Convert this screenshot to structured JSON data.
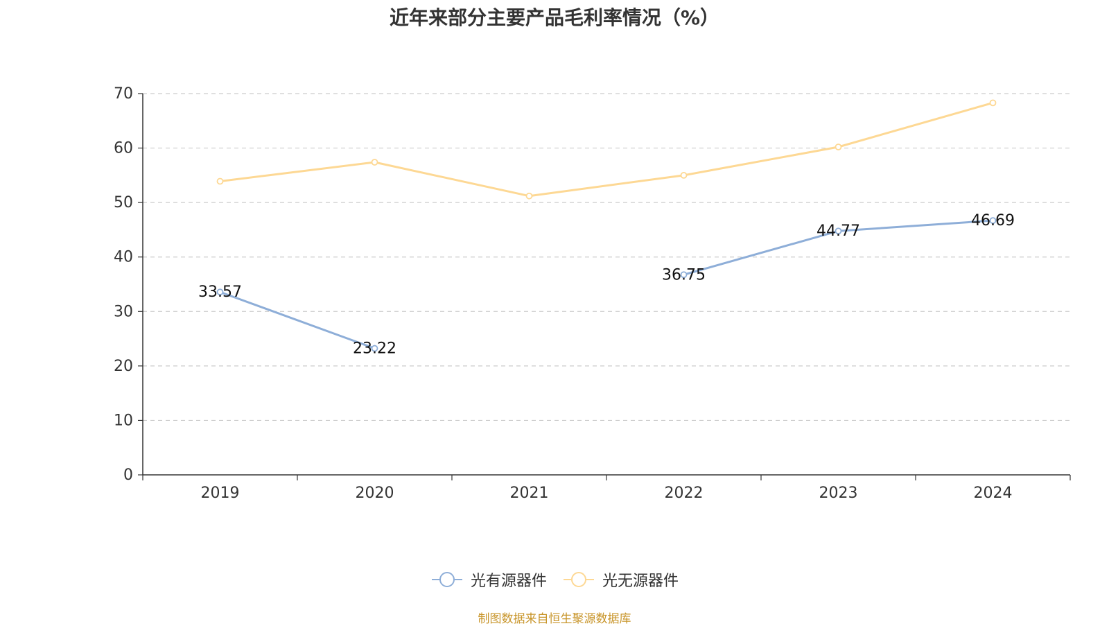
{
  "title": "近年来部分主要产品毛利率情况（%）",
  "source_note": "制图数据来自恒生聚源数据库",
  "chart_data": {
    "type": "line",
    "categories": [
      "2019",
      "2020",
      "2021",
      "2022",
      "2023",
      "2024"
    ],
    "ylim": [
      0,
      70
    ],
    "yticks": [
      0,
      10,
      20,
      30,
      40,
      50,
      60,
      70
    ],
    "grid": true,
    "legend_position": "bottom",
    "series": [
      {
        "name": "光有源器件",
        "color": "#8eaed8",
        "values": [
          33.57,
          23.22,
          null,
          36.75,
          44.77,
          46.69
        ],
        "labels": [
          "33.57",
          "23.22",
          "",
          "36.75",
          "44.77",
          "46.69"
        ]
      },
      {
        "name": "光无源器件",
        "color": "#fdd894",
        "values": [
          53.9,
          57.4,
          51.2,
          55.0,
          60.2,
          68.3
        ],
        "labels": [
          "",
          "",
          "",
          "",
          "",
          ""
        ]
      }
    ]
  }
}
